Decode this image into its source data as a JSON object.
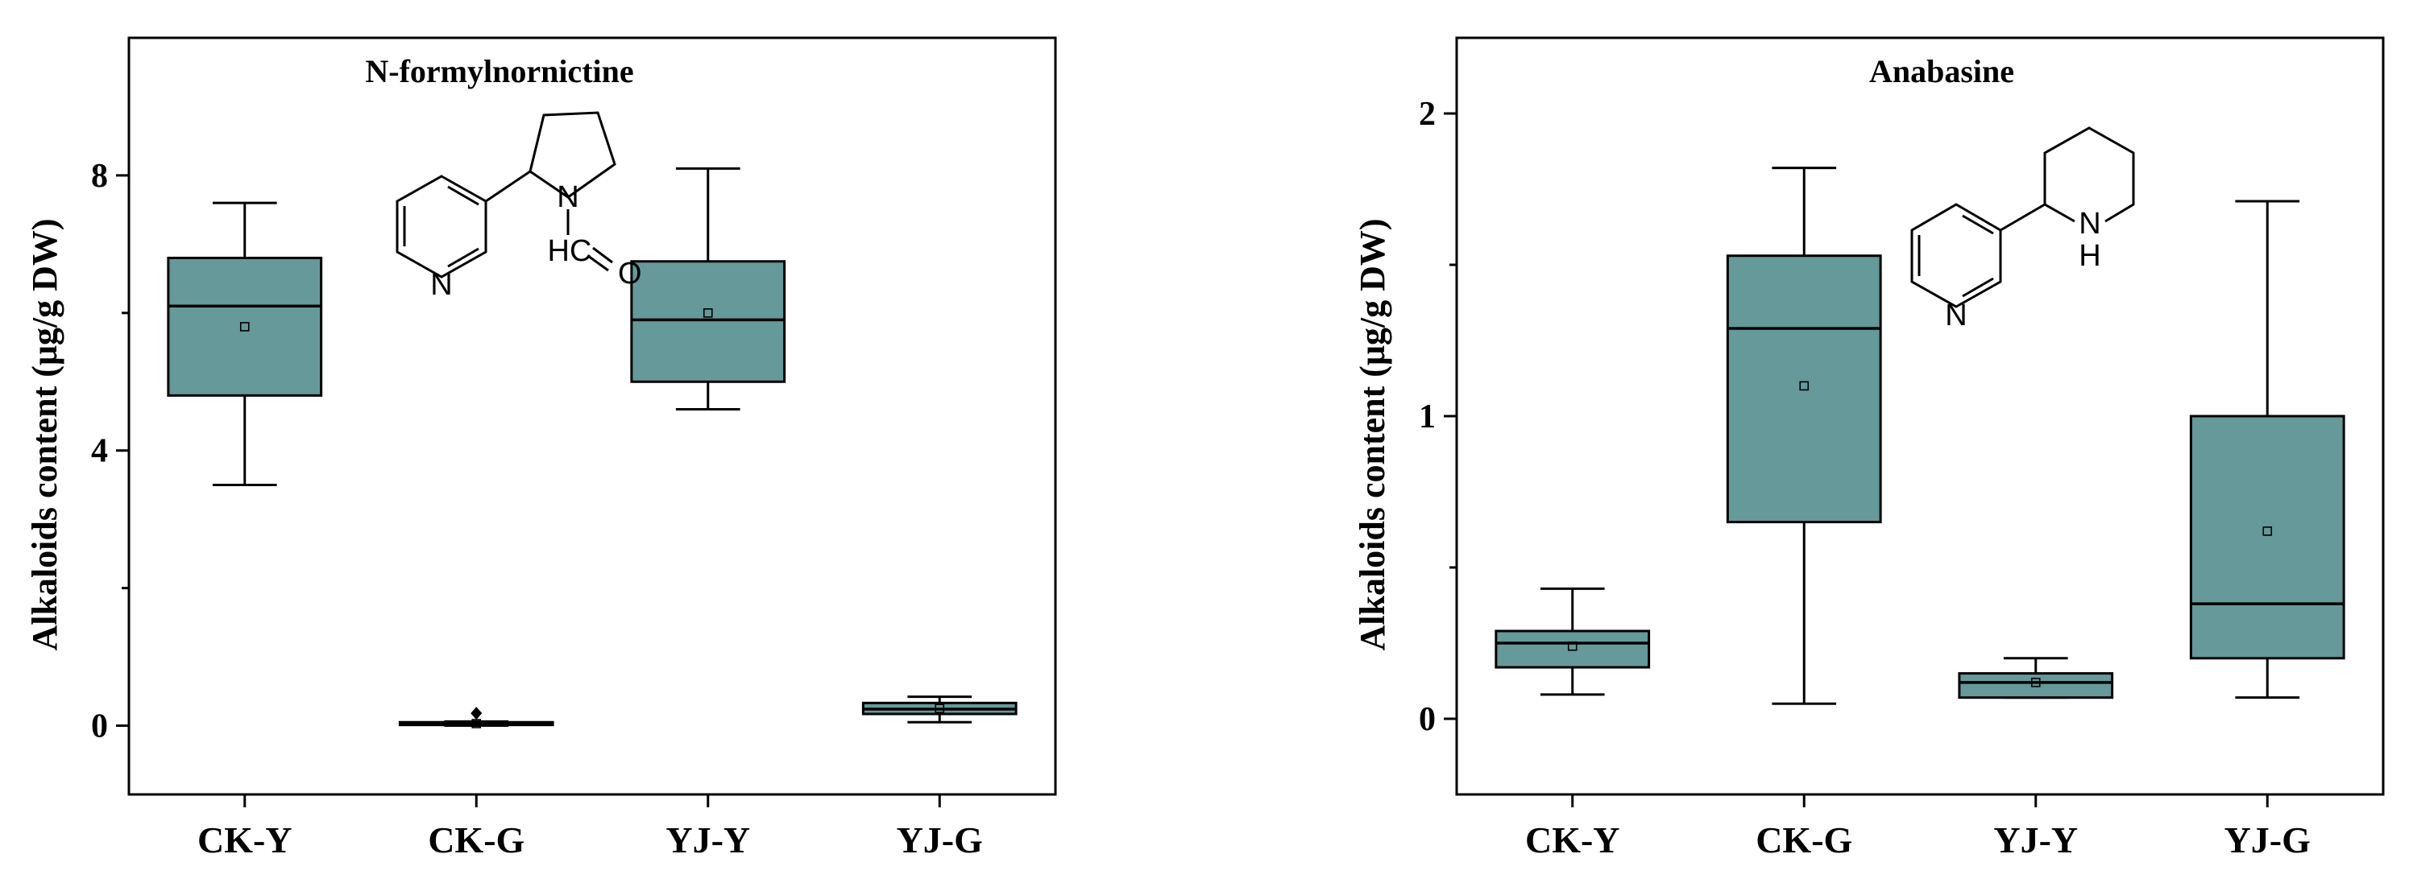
{
  "chart_data": [
    {
      "type": "box",
      "title": "N-formylnornictine",
      "xlabel": "",
      "ylabel": "Alkaloids content (μg/g DW)",
      "ylim": [
        -1,
        10
      ],
      "yticks": [
        0,
        4,
        8
      ],
      "ytick_labels": [
        "0",
        "4",
        "8"
      ],
      "categories": [
        "CK-Y",
        "CK-G",
        "YJ-Y",
        "YJ-G"
      ],
      "box_color": "#669999",
      "stats": [
        {
          "min": 3.5,
          "q1": 4.8,
          "median": 6.1,
          "q3": 6.8,
          "max": 7.6,
          "mean": 5.8
        },
        {
          "min": 0.0,
          "q1": 0.01,
          "median": 0.03,
          "q3": 0.05,
          "max": 0.06,
          "mean": 0.03,
          "outlier": 0.18
        },
        {
          "min": 4.6,
          "q1": 5.0,
          "median": 5.9,
          "q3": 6.75,
          "max": 8.1,
          "mean": 6.0
        },
        {
          "min": 0.05,
          "q1": 0.17,
          "median": 0.24,
          "q3": 0.33,
          "max": 0.42,
          "mean": 0.25
        }
      ],
      "structure_atoms": {
        "ring_n": "N",
        "pyrrolidine_n": "N",
        "formyl": "HC",
        "oxygen": "O"
      }
    },
    {
      "type": "box",
      "title": "Anabasine",
      "xlabel": "",
      "ylabel": "Alkaloids content (μg/g DW)",
      "ylim": [
        -0.25,
        2.25
      ],
      "yticks": [
        0,
        1,
        2
      ],
      "ytick_labels": [
        "0",
        "1",
        "2"
      ],
      "categories": [
        "CK-Y",
        "CK-G",
        "YJ-Y",
        "YJ-G"
      ],
      "box_color": "#669999",
      "stats": [
        {
          "min": 0.08,
          "q1": 0.17,
          "median": 0.25,
          "q3": 0.29,
          "max": 0.43,
          "mean": 0.24
        },
        {
          "min": 0.05,
          "q1": 0.65,
          "median": 1.29,
          "q3": 1.53,
          "max": 1.82,
          "mean": 1.1
        },
        {
          "min": 0.07,
          "q1": 0.07,
          "median": 0.12,
          "q3": 0.15,
          "max": 0.2,
          "mean": 0.12
        },
        {
          "min": 0.07,
          "q1": 0.2,
          "median": 0.38,
          "q3": 1.0,
          "max": 1.71,
          "mean": 0.62
        }
      ],
      "structure_atoms": {
        "ring_n": "N",
        "piperidine_nh": "N\nH"
      }
    }
  ]
}
